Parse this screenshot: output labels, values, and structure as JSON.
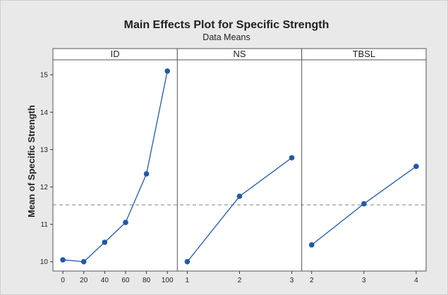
{
  "chart_data": {
    "type": "line",
    "title": "Main Effects Plot for Specific Strength",
    "subtitle": "Data Means",
    "ylabel": "Mean of Specific Strength",
    "ylim": [
      9.75,
      15.4
    ],
    "yticks": [
      10,
      11,
      12,
      13,
      14,
      15
    ],
    "reference_line": 11.52,
    "colors": {
      "series": "#1f5aa6",
      "reference": "#9a9a9a",
      "plot_bg": "#ffffff",
      "frame_bg": "#e9e9e9"
    },
    "panels": [
      {
        "name": "ID",
        "x": [
          0,
          20,
          40,
          60,
          80,
          100
        ],
        "y": [
          10.05,
          10.0,
          10.52,
          11.05,
          12.35,
          15.1
        ]
      },
      {
        "name": "NS",
        "x": [
          1,
          2,
          3
        ],
        "y": [
          10.0,
          11.75,
          12.78
        ]
      },
      {
        "name": "TBSL",
        "x": [
          2,
          3,
          4
        ],
        "y": [
          10.45,
          11.55,
          12.55
        ]
      }
    ]
  }
}
